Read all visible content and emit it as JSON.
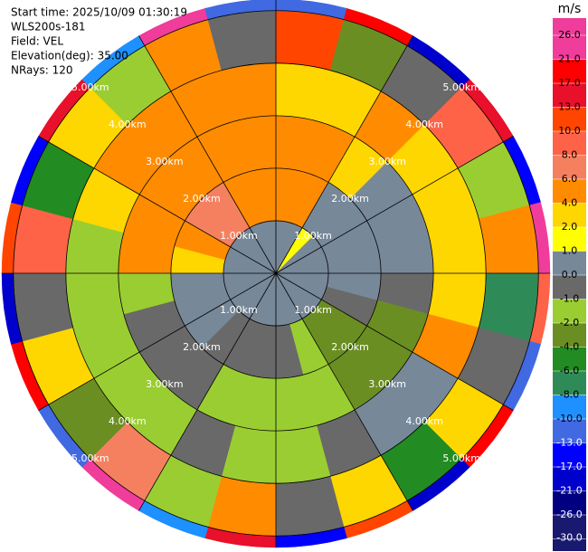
{
  "chart_data": {
    "type": "ppi",
    "header": [
      "Start time: 2025/10/09 01:30:19",
      "WLS200s-181",
      "Field: VEL",
      "Elevation(deg): 35.00",
      "NRays: 120"
    ],
    "colorbar_title": "m/s",
    "levels": [
      {
        "value": 26,
        "label": "26.0"
      },
      {
        "value": 21,
        "label": "21.0"
      },
      {
        "value": 17,
        "label": "17.0"
      },
      {
        "value": 13,
        "label": "13.0"
      },
      {
        "value": 10,
        "label": "10.0"
      },
      {
        "value": 8,
        "label": "8.0"
      },
      {
        "value": 6,
        "label": "6.0"
      },
      {
        "value": 4,
        "label": "4.0"
      },
      {
        "value": 2,
        "label": "2.0"
      },
      {
        "value": 1,
        "label": "1.0"
      },
      {
        "value": 0,
        "label": "0.0"
      },
      {
        "value": -1,
        "label": "-1.0"
      },
      {
        "value": -2,
        "label": "-2.0"
      },
      {
        "value": -4,
        "label": "-4.0"
      },
      {
        "value": -6,
        "label": "-6.0"
      },
      {
        "value": -8,
        "label": "-8.0"
      },
      {
        "value": -10,
        "label": "-10.0"
      },
      {
        "value": -13,
        "label": "-13.0"
      },
      {
        "value": -17,
        "label": "-17.0"
      },
      {
        "value": -21,
        "label": "-21.0"
      },
      {
        "value": -26,
        "label": "-26.0"
      },
      {
        "value": -30,
        "label": "-30.0"
      }
    ],
    "colors": [
      "#f03c9a",
      "#ff0000",
      "#e8102a",
      "#ff4500",
      "#ff6347",
      "#f58060",
      "#ff8c00",
      "#ffd700",
      "#ffff00",
      "#778899",
      "#696969",
      "#9acd32",
      "#6b8e23",
      "#228b22",
      "#2e8b57",
      "#1e90ff",
      "#4169e1",
      "#0000ff",
      "#0000cd",
      "#000080",
      "#191970"
    ],
    "rlim": [
      0,
      5.22
    ],
    "rticks": [
      {
        "value": 1,
        "label": "1.00km"
      },
      {
        "value": 2,
        "label": "2.00km"
      },
      {
        "value": 3,
        "label": "3.00km"
      },
      {
        "value": 4,
        "label": "4.00km"
      },
      {
        "value": 5,
        "label": "5.00km"
      }
    ],
    "velocity": [
      [
        0,
        4,
        4,
        2,
        10,
        -13
      ],
      [
        0,
        4,
        4,
        2,
        -4,
        17
      ],
      [
        1,
        0,
        2,
        4,
        -1,
        -21
      ],
      [
        0,
        0,
        0,
        2,
        8,
        13
      ],
      [
        0,
        0,
        0,
        2,
        -2,
        -17
      ],
      [
        0,
        0,
        0,
        2,
        4,
        21
      ],
      [
        0,
        0,
        -1,
        2,
        -8,
        8
      ],
      [
        0,
        -1,
        -4,
        4,
        -1,
        -13
      ],
      [
        0,
        -4,
        -4,
        0,
        2,
        17
      ],
      [
        0,
        -4,
        -4,
        0,
        -6,
        -21
      ],
      [
        0,
        -2,
        -2,
        -1,
        2,
        10
      ],
      [
        0,
        -1,
        -2,
        -2,
        -1,
        -17
      ],
      [
        0,
        -1,
        -2,
        -2,
        4,
        13
      ],
      [
        0,
        -1,
        -2,
        -1,
        -2,
        -10
      ],
      [
        0,
        -1,
        -1,
        -2,
        6,
        21
      ],
      [
        0,
        0,
        -1,
        -2,
        -4,
        -13
      ],
      [
        0,
        0,
        -1,
        -2,
        2,
        17
      ],
      [
        0,
        0,
        -2,
        -2,
        -1,
        -21
      ],
      [
        0,
        2,
        4,
        -2,
        8,
        10
      ],
      [
        0,
        4,
        4,
        2,
        -6,
        -17
      ],
      [
        0,
        6,
        4,
        4,
        2,
        13
      ],
      [
        0,
        6,
        4,
        4,
        -2,
        -10
      ],
      [
        0,
        4,
        4,
        4,
        4,
        21
      ],
      [
        0,
        4,
        4,
        4,
        -1,
        -13
      ]
    ]
  }
}
